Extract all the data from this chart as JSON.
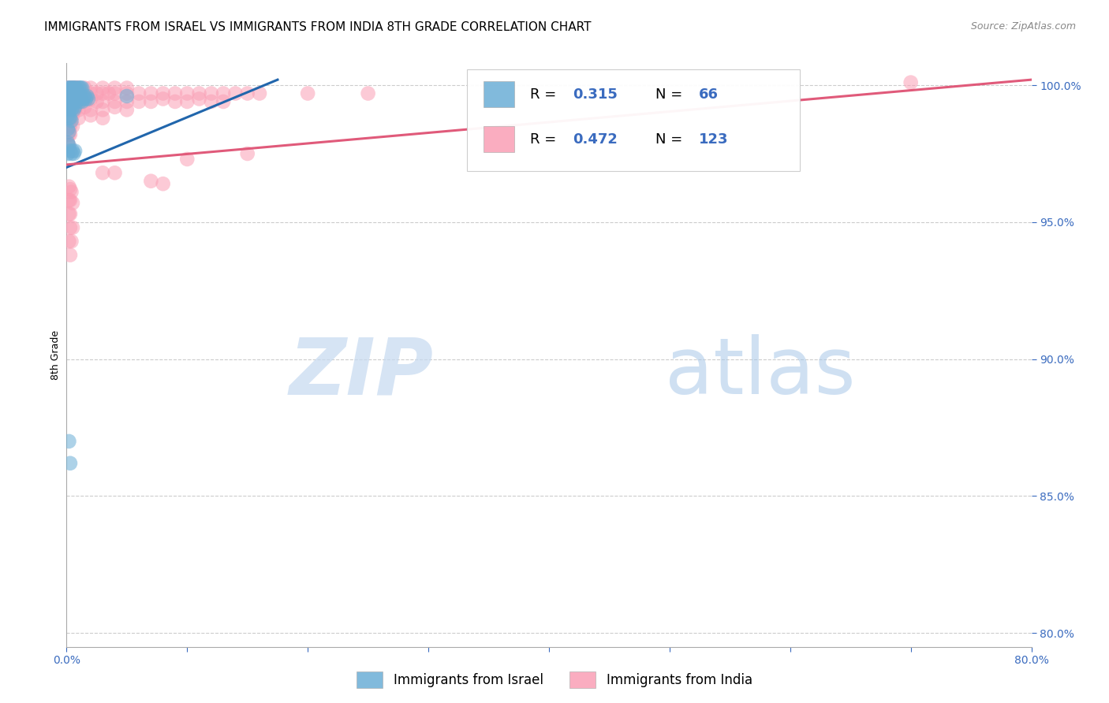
{
  "title": "IMMIGRANTS FROM ISRAEL VS IMMIGRANTS FROM INDIA 8TH GRADE CORRELATION CHART",
  "source": "Source: ZipAtlas.com",
  "ylabel": "8th Grade",
  "xlim": [
    0.0,
    0.8
  ],
  "ylim": [
    0.795,
    1.008
  ],
  "xticks": [
    0.0,
    0.1,
    0.2,
    0.3,
    0.4,
    0.5,
    0.6,
    0.7,
    0.8
  ],
  "xticklabels": [
    "0.0%",
    "",
    "",
    "",
    "",
    "",
    "",
    "",
    "80.0%"
  ],
  "yticks": [
    0.8,
    0.85,
    0.9,
    0.95,
    1.0
  ],
  "yticklabels": [
    "80.0%",
    "85.0%",
    "90.0%",
    "95.0%",
    "100.0%"
  ],
  "legend_labels": [
    "Immigrants from Israel",
    "Immigrants from India"
  ],
  "israel_color": "#6baed6",
  "india_color": "#fa9fb5",
  "israel_line_color": "#2166ac",
  "india_line_color": "#e05a7a",
  "watermark_zip": "ZIP",
  "watermark_atlas": "atlas",
  "background_color": "#ffffff",
  "grid_color": "#cccccc",
  "title_fontsize": 11,
  "axis_label_fontsize": 9,
  "tick_fontsize": 10,
  "israel_line_x0": 0.0,
  "israel_line_y0": 0.97,
  "israel_line_x1": 0.175,
  "israel_line_y1": 1.002,
  "india_line_x0": 0.0,
  "india_line_y0": 0.971,
  "india_line_x1": 0.8,
  "india_line_y1": 1.002,
  "israel_points": [
    [
      0.001,
      0.999
    ],
    [
      0.002,
      0.999
    ],
    [
      0.002,
      0.998
    ],
    [
      0.003,
      0.999
    ],
    [
      0.003,
      0.998
    ],
    [
      0.004,
      0.999
    ],
    [
      0.004,
      0.998
    ],
    [
      0.005,
      0.999
    ],
    [
      0.005,
      0.997
    ],
    [
      0.006,
      0.999
    ],
    [
      0.006,
      0.998
    ],
    [
      0.007,
      0.999
    ],
    [
      0.007,
      0.997
    ],
    [
      0.008,
      0.999
    ],
    [
      0.009,
      0.998
    ],
    [
      0.01,
      0.999
    ],
    [
      0.011,
      0.999
    ],
    [
      0.012,
      0.999
    ],
    [
      0.013,
      0.999
    ],
    [
      0.001,
      0.997
    ],
    [
      0.002,
      0.996
    ],
    [
      0.002,
      0.995
    ],
    [
      0.003,
      0.996
    ],
    [
      0.004,
      0.995
    ],
    [
      0.004,
      0.997
    ],
    [
      0.005,
      0.996
    ],
    [
      0.006,
      0.995
    ],
    [
      0.006,
      0.997
    ],
    [
      0.007,
      0.996
    ],
    [
      0.008,
      0.994
    ],
    [
      0.009,
      0.995
    ],
    [
      0.01,
      0.996
    ],
    [
      0.011,
      0.994
    ],
    [
      0.012,
      0.995
    ],
    [
      0.013,
      0.994
    ],
    [
      0.014,
      0.995
    ],
    [
      0.015,
      0.996
    ],
    [
      0.016,
      0.995
    ],
    [
      0.017,
      0.996
    ],
    [
      0.018,
      0.995
    ],
    [
      0.001,
      0.993
    ],
    [
      0.002,
      0.992
    ],
    [
      0.002,
      0.991
    ],
    [
      0.003,
      0.992
    ],
    [
      0.004,
      0.991
    ],
    [
      0.005,
      0.992
    ],
    [
      0.006,
      0.991
    ],
    [
      0.007,
      0.992
    ],
    [
      0.001,
      0.989
    ],
    [
      0.002,
      0.988
    ],
    [
      0.003,
      0.988
    ],
    [
      0.004,
      0.987
    ],
    [
      0.001,
      0.984
    ],
    [
      0.002,
      0.983
    ],
    [
      0.05,
      0.996
    ],
    [
      0.002,
      0.87
    ],
    [
      0.003,
      0.862
    ],
    [
      0.001,
      0.979
    ],
    [
      0.002,
      0.978
    ],
    [
      0.001,
      0.975
    ],
    [
      0.003,
      0.976
    ],
    [
      0.004,
      0.975
    ],
    [
      0.005,
      0.976
    ],
    [
      0.006,
      0.975
    ],
    [
      0.007,
      0.976
    ]
  ],
  "india_points": [
    [
      0.001,
      0.999
    ],
    [
      0.002,
      0.999
    ],
    [
      0.003,
      0.999
    ],
    [
      0.004,
      0.999
    ],
    [
      0.005,
      0.999
    ],
    [
      0.006,
      0.999
    ],
    [
      0.007,
      0.999
    ],
    [
      0.008,
      0.999
    ],
    [
      0.009,
      0.999
    ],
    [
      0.01,
      0.999
    ],
    [
      0.015,
      0.999
    ],
    [
      0.02,
      0.999
    ],
    [
      0.03,
      0.999
    ],
    [
      0.04,
      0.999
    ],
    [
      0.05,
      0.999
    ],
    [
      0.7,
      1.001
    ],
    [
      0.001,
      0.997
    ],
    [
      0.002,
      0.997
    ],
    [
      0.003,
      0.997
    ],
    [
      0.004,
      0.997
    ],
    [
      0.005,
      0.997
    ],
    [
      0.006,
      0.997
    ],
    [
      0.007,
      0.997
    ],
    [
      0.008,
      0.997
    ],
    [
      0.009,
      0.997
    ],
    [
      0.01,
      0.997
    ],
    [
      0.015,
      0.997
    ],
    [
      0.02,
      0.997
    ],
    [
      0.025,
      0.997
    ],
    [
      0.03,
      0.997
    ],
    [
      0.035,
      0.997
    ],
    [
      0.04,
      0.997
    ],
    [
      0.05,
      0.997
    ],
    [
      0.06,
      0.997
    ],
    [
      0.07,
      0.997
    ],
    [
      0.08,
      0.997
    ],
    [
      0.09,
      0.997
    ],
    [
      0.1,
      0.997
    ],
    [
      0.11,
      0.997
    ],
    [
      0.12,
      0.997
    ],
    [
      0.13,
      0.997
    ],
    [
      0.14,
      0.997
    ],
    [
      0.15,
      0.997
    ],
    [
      0.16,
      0.997
    ],
    [
      0.2,
      0.997
    ],
    [
      0.25,
      0.997
    ],
    [
      0.001,
      0.995
    ],
    [
      0.002,
      0.995
    ],
    [
      0.003,
      0.994
    ],
    [
      0.004,
      0.994
    ],
    [
      0.005,
      0.995
    ],
    [
      0.006,
      0.994
    ],
    [
      0.007,
      0.994
    ],
    [
      0.008,
      0.995
    ],
    [
      0.009,
      0.994
    ],
    [
      0.01,
      0.995
    ],
    [
      0.015,
      0.994
    ],
    [
      0.02,
      0.995
    ],
    [
      0.025,
      0.994
    ],
    [
      0.03,
      0.994
    ],
    [
      0.04,
      0.994
    ],
    [
      0.05,
      0.994
    ],
    [
      0.06,
      0.994
    ],
    [
      0.07,
      0.994
    ],
    [
      0.08,
      0.995
    ],
    [
      0.09,
      0.994
    ],
    [
      0.1,
      0.994
    ],
    [
      0.11,
      0.995
    ],
    [
      0.12,
      0.994
    ],
    [
      0.13,
      0.994
    ],
    [
      0.001,
      0.992
    ],
    [
      0.002,
      0.992
    ],
    [
      0.003,
      0.991
    ],
    [
      0.004,
      0.992
    ],
    [
      0.005,
      0.991
    ],
    [
      0.006,
      0.992
    ],
    [
      0.007,
      0.991
    ],
    [
      0.008,
      0.992
    ],
    [
      0.01,
      0.991
    ],
    [
      0.015,
      0.992
    ],
    [
      0.02,
      0.991
    ],
    [
      0.03,
      0.991
    ],
    [
      0.04,
      0.992
    ],
    [
      0.05,
      0.991
    ],
    [
      0.001,
      0.989
    ],
    [
      0.002,
      0.988
    ],
    [
      0.003,
      0.989
    ],
    [
      0.004,
      0.988
    ],
    [
      0.005,
      0.989
    ],
    [
      0.01,
      0.988
    ],
    [
      0.02,
      0.989
    ],
    [
      0.03,
      0.988
    ],
    [
      0.001,
      0.986
    ],
    [
      0.002,
      0.985
    ],
    [
      0.003,
      0.985
    ],
    [
      0.005,
      0.985
    ],
    [
      0.001,
      0.982
    ],
    [
      0.002,
      0.982
    ],
    [
      0.003,
      0.982
    ],
    [
      0.001,
      0.979
    ],
    [
      0.002,
      0.978
    ],
    [
      0.1,
      0.973
    ],
    [
      0.15,
      0.975
    ],
    [
      0.03,
      0.968
    ],
    [
      0.04,
      0.968
    ],
    [
      0.07,
      0.965
    ],
    [
      0.08,
      0.964
    ],
    [
      0.002,
      0.963
    ],
    [
      0.003,
      0.962
    ],
    [
      0.004,
      0.961
    ],
    [
      0.002,
      0.958
    ],
    [
      0.003,
      0.958
    ],
    [
      0.005,
      0.957
    ],
    [
      0.002,
      0.953
    ],
    [
      0.003,
      0.953
    ],
    [
      0.003,
      0.948
    ],
    [
      0.005,
      0.948
    ],
    [
      0.002,
      0.943
    ],
    [
      0.004,
      0.943
    ],
    [
      0.003,
      0.938
    ]
  ]
}
